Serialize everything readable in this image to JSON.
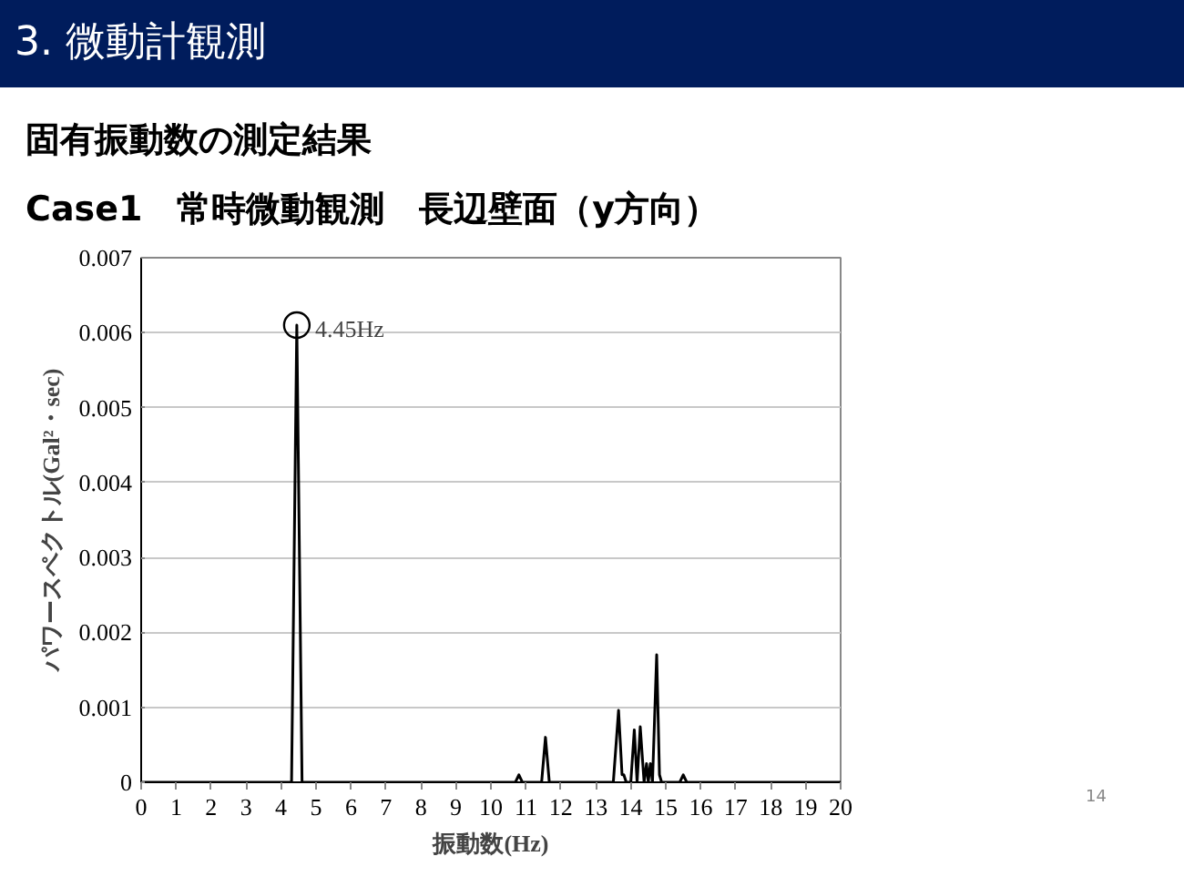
{
  "chart_data": {
    "type": "line",
    "title": "3. 微動計観測",
    "subtitle": "固有振動数の測定結果",
    "xlabel": "振動数(Hz)",
    "ylabel": "パワースペクトル(Gal²・sec)",
    "x": [
      0,
      4.3,
      4.45,
      4.6,
      10.7,
      10.8,
      10.9,
      11.45,
      11.56,
      11.67,
      13.5,
      13.65,
      13.75,
      13.8,
      13.87,
      14.0,
      14.1,
      14.18,
      14.27,
      14.38,
      14.45,
      14.5,
      14.56,
      14.62,
      14.74,
      14.82,
      14.88,
      15.0,
      15.4,
      15.5,
      15.6,
      20
    ],
    "series": [
      {
        "color": "#000000",
        "values": [
          0,
          0,
          0.0061,
          0,
          0,
          0.0001,
          0,
          0,
          0.0006,
          0,
          0,
          0.00096,
          0.0001,
          0.0001,
          0,
          0,
          0.0007,
          0,
          0.00074,
          0,
          0.00025,
          0,
          0.00025,
          0,
          0.0017,
          0.0001,
          0,
          0,
          0,
          0.0001,
          0,
          0
        ]
      }
    ],
    "xlim": [
      0,
      20
    ],
    "xticks": [
      0,
      1,
      2,
      3,
      4,
      5,
      6,
      7,
      8,
      9,
      10,
      11,
      12,
      13,
      14,
      15,
      16,
      17,
      18,
      19,
      20
    ],
    "ylim": [
      0,
      0.007
    ],
    "yticks": [
      0,
      0.001,
      0.002,
      0.003,
      0.004,
      0.005,
      0.006,
      0.007
    ],
    "grid": "y",
    "marker": "none",
    "line_style": "solid",
    "annotations": [
      "Case1　常時微動観測　長辺壁面（y方向）",
      {
        "text": "4.45Hz",
        "x": 4.45,
        "y": 0.0061
      },
      "14"
    ]
  }
}
